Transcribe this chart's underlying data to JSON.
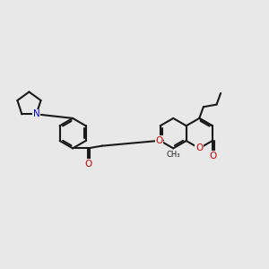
{
  "bg_color": "#e8e8e8",
  "bc": "#1a1a1a",
  "oc": "#cc0000",
  "nc": "#0000cc",
  "lw": 1.5,
  "fig_w": 3.0,
  "fig_h": 3.0,
  "dpi": 100,
  "xlim": [
    0,
    12
  ],
  "ylim": [
    2,
    9
  ]
}
